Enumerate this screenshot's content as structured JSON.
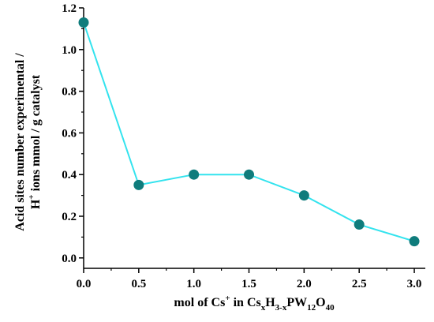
{
  "chart_data": {
    "type": "line",
    "x": [
      0.0,
      0.5,
      1.0,
      1.5,
      2.0,
      2.5,
      3.0
    ],
    "series": [
      {
        "values": [
          1.13,
          0.35,
          0.4,
          0.4,
          0.3,
          0.16,
          0.08
        ]
      }
    ],
    "x_ticks": [
      "0.0",
      "0.5",
      "1.0",
      "1.5",
      "2.0",
      "2.5",
      "3.0"
    ],
    "y_ticks": [
      "0.0",
      "0.2",
      "0.4",
      "0.6",
      "0.8",
      "1.0",
      "1.2"
    ],
    "xlim": [
      0.0,
      3.1
    ],
    "ylim": [
      -0.05,
      1.2
    ],
    "xlabel": {
      "part1": "mol of Cs",
      "sup1": "+",
      "part2": " in Cs",
      "sub1": "x",
      "part3": "H",
      "sub2": "3-x",
      "part4": "PW",
      "sub3": "12",
      "part5": "O",
      "sub4": "40"
    },
    "ylabel": {
      "line1": "Acid sites number experimental /",
      "line2_sup": "+",
      "line2_pre": "H",
      "line2_post": " ions mmol / g catalyst"
    },
    "colors": {
      "line": "#33e3ee",
      "marker": "#0f7c7c",
      "axis": "#000000"
    },
    "grid": false
  }
}
